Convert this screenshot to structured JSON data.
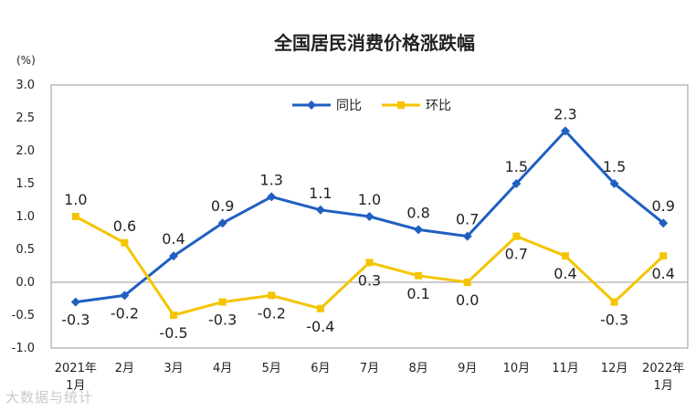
{
  "chart_data": {
    "type": "line",
    "title": "全国居民消费价格涨跌幅",
    "unit_label": "(%)",
    "categories": [
      [
        "2021年",
        "1月"
      ],
      [
        "2月"
      ],
      [
        "3月"
      ],
      [
        "4月"
      ],
      [
        "5月"
      ],
      [
        "6月"
      ],
      [
        "7月"
      ],
      [
        "8月"
      ],
      [
        "9月"
      ],
      [
        "10月"
      ],
      [
        "11月"
      ],
      [
        "12月"
      ],
      [
        "2022年",
        "1月"
      ]
    ],
    "ylim": [
      -1.0,
      3.0
    ],
    "yticks": [
      "3.0",
      "2.5",
      "2.0",
      "1.5",
      "1.0",
      "0.5",
      "0.0",
      "-0.5",
      "-1.0"
    ],
    "grid": false,
    "legend_position": "top-center",
    "series": [
      {
        "name": "同比",
        "color": "#1f5fc1",
        "marker": "diamond",
        "values": [
          -0.3,
          -0.2,
          0.4,
          0.9,
          1.3,
          1.1,
          1.0,
          0.8,
          0.7,
          1.5,
          2.3,
          1.5,
          0.9
        ],
        "labels": [
          "-0.3",
          "-0.2",
          "0.4",
          "0.9",
          "1.3",
          "1.1",
          "1.0",
          "0.8",
          "0.7",
          "1.5",
          "2.3",
          "1.5",
          "0.9"
        ]
      },
      {
        "name": "环比",
        "color": "#f5c400",
        "marker": "square",
        "values": [
          1.0,
          0.6,
          -0.5,
          -0.3,
          -0.2,
          -0.4,
          0.3,
          0.1,
          0.0,
          0.7,
          0.4,
          -0.3,
          0.4
        ],
        "labels": [
          "1.0",
          "0.6",
          "-0.5",
          "-0.3",
          "-0.2",
          "-0.4",
          "0.3",
          "0.1",
          "0.0",
          "0.7",
          "0.4",
          "-0.3",
          "0.4"
        ]
      }
    ]
  },
  "watermark": "大数据与统计"
}
